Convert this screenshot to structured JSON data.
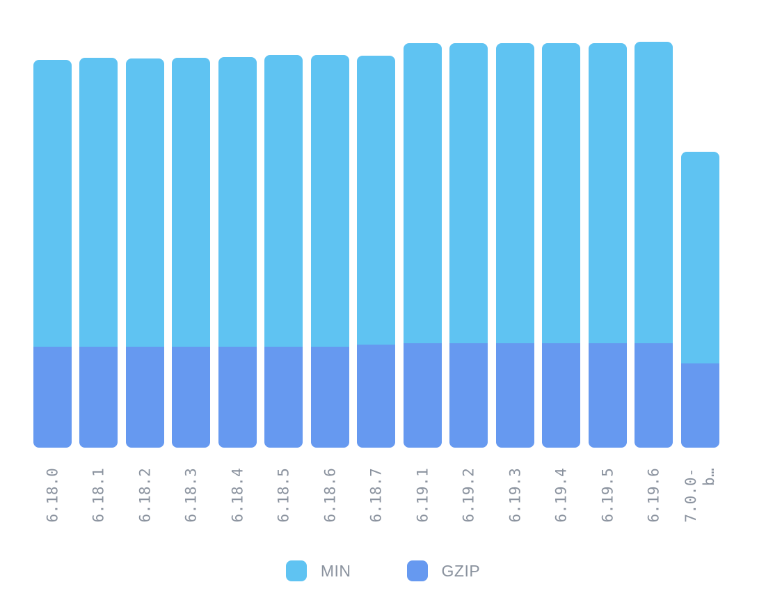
{
  "chart_data": {
    "type": "bar",
    "stacked": true,
    "title": "",
    "xlabel": "",
    "ylabel": "",
    "grid": false,
    "legend_position": "bottom",
    "units": "relative bar height in px (chart displays no numeric axis)",
    "categories": [
      "6.18.0",
      "6.18.1",
      "6.18.2",
      "6.18.3",
      "6.18.4",
      "6.18.5",
      "6.18.6",
      "6.18.7",
      "6.19.1",
      "6.19.2",
      "6.19.3",
      "6.19.4",
      "6.19.5",
      "6.19.6",
      "7.0.0-\nb…"
    ],
    "series": [
      {
        "name": "MIN",
        "color": "#5fc3f2",
        "values": [
          412,
          415,
          414,
          415,
          416,
          419,
          419,
          415,
          431,
          431,
          431,
          431,
          431,
          433,
          304
        ]
      },
      {
        "name": "GZIP",
        "color": "#6699f0",
        "values": [
          145,
          145,
          145,
          145,
          145,
          145,
          145,
          148,
          150,
          150,
          150,
          150,
          150,
          150,
          121
        ]
      }
    ]
  },
  "legend": {
    "min_label": "MIN",
    "gzip_label": "GZIP"
  },
  "colors": {
    "min": "#5fc3f2",
    "gzip": "#6699f0",
    "axis_text": "#8a929e",
    "background": "#ffffff"
  }
}
